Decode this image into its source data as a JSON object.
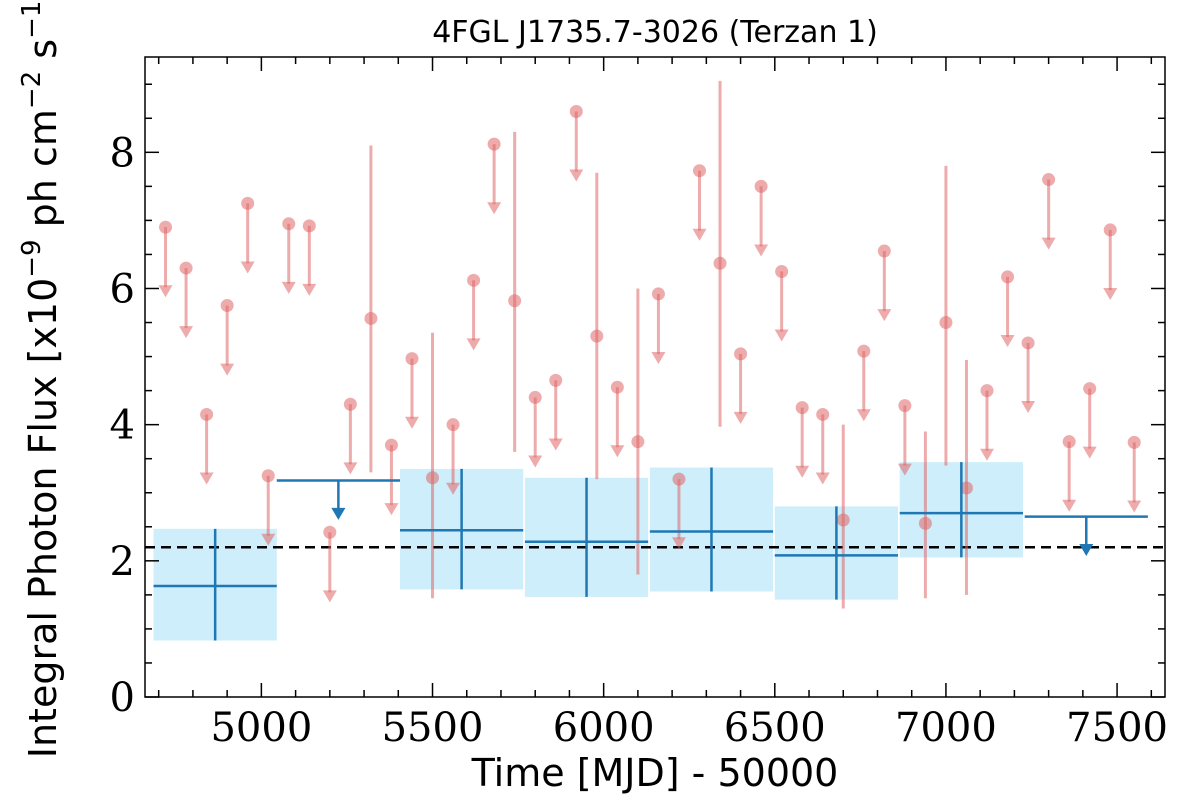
{
  "chart_data": {
    "type": "scatter",
    "title": "4FGL J1735.7-3026 (Terzan 1)",
    "xlabel": "Time [MJD] - 50000",
    "ylabel_parts": [
      "Integral Photon Flux [x10",
      "−9",
      " ph cm",
      "−2",
      " s",
      "−1",
      "]"
    ],
    "xlim": [
      4660,
      7640
    ],
    "ylim": [
      0,
      9.4
    ],
    "x_ticks": [
      5000,
      5500,
      6000,
      6500,
      7000,
      7500
    ],
    "y_ticks": [
      0,
      2,
      4,
      6,
      8
    ],
    "grid": false,
    "mean_flux": 2.2,
    "colors": {
      "red": "#e06666",
      "blue": "#1f77b4",
      "band": "#cdeefa",
      "mean": "#000000"
    },
    "short_bins": {
      "upper_limits": [
        {
          "x": 4720,
          "y": 6.9
        },
        {
          "x": 4780,
          "y": 6.3
        },
        {
          "x": 4840,
          "y": 4.15
        },
        {
          "x": 4900,
          "y": 5.75
        },
        {
          "x": 4960,
          "y": 7.25
        },
        {
          "x": 5020,
          "y": 3.25
        },
        {
          "x": 5080,
          "y": 6.95
        },
        {
          "x": 5140,
          "y": 6.92
        },
        {
          "x": 5200,
          "y": 2.42
        },
        {
          "x": 5260,
          "y": 4.3
        },
        {
          "x": 5380,
          "y": 3.7
        },
        {
          "x": 5440,
          "y": 4.97
        },
        {
          "x": 5560,
          "y": 4.0
        },
        {
          "x": 5620,
          "y": 6.12
        },
        {
          "x": 5680,
          "y": 8.12
        },
        {
          "x": 5800,
          "y": 4.4
        },
        {
          "x": 5860,
          "y": 4.65
        },
        {
          "x": 5920,
          "y": 8.6
        },
        {
          "x": 6040,
          "y": 4.55
        },
        {
          "x": 6160,
          "y": 5.92
        },
        {
          "x": 6220,
          "y": 3.2
        },
        {
          "x": 6280,
          "y": 7.73
        },
        {
          "x": 6400,
          "y": 5.04
        },
        {
          "x": 6460,
          "y": 7.5
        },
        {
          "x": 6520,
          "y": 6.25
        },
        {
          "x": 6580,
          "y": 4.25
        },
        {
          "x": 6640,
          "y": 4.15
        },
        {
          "x": 6760,
          "y": 5.08
        },
        {
          "x": 6820,
          "y": 6.55
        },
        {
          "x": 6880,
          "y": 4.28
        },
        {
          "x": 7120,
          "y": 4.5
        },
        {
          "x": 7180,
          "y": 6.17
        },
        {
          "x": 7240,
          "y": 5.2
        },
        {
          "x": 7360,
          "y": 3.75
        },
        {
          "x": 7300,
          "y": 7.6
        },
        {
          "x": 7420,
          "y": 4.53
        },
        {
          "x": 7480,
          "y": 6.86
        },
        {
          "x": 7550,
          "y": 3.74
        }
      ],
      "detections": [
        {
          "x": 5320,
          "y": 5.56,
          "ylo": 3.3,
          "yhi": 8.1
        },
        {
          "x": 5500,
          "y": 3.22,
          "ylo": 1.45,
          "yhi": 5.35
        },
        {
          "x": 5740,
          "y": 5.82,
          "ylo": 3.6,
          "yhi": 8.3
        },
        {
          "x": 5980,
          "y": 5.3,
          "ylo": 3.2,
          "yhi": 7.7
        },
        {
          "x": 6100,
          "y": 3.75,
          "ylo": 1.8,
          "yhi": 6.0
        },
        {
          "x": 6340,
          "y": 6.37,
          "ylo": 3.97,
          "yhi": 9.05
        },
        {
          "x": 6700,
          "y": 2.6,
          "ylo": 1.3,
          "yhi": 4.0
        },
        {
          "x": 6940,
          "y": 2.55,
          "ylo": 1.45,
          "yhi": 3.9
        },
        {
          "x": 7000,
          "y": 5.5,
          "ylo": 3.4,
          "yhi": 7.8
        },
        {
          "x": 7060,
          "y": 3.07,
          "ylo": 1.5,
          "yhi": 4.95
        }
      ]
    },
    "long_bins": {
      "detections": [
        {
          "x": 4865,
          "xlo": 4685,
          "xhi": 5045,
          "y": 1.63,
          "ylo": 0.83,
          "yhi": 2.47
        },
        {
          "x": 5585,
          "xlo": 5405,
          "xhi": 5765,
          "y": 2.45,
          "ylo": 1.58,
          "yhi": 3.35
        },
        {
          "x": 5950,
          "xlo": 5770,
          "xhi": 6130,
          "y": 2.28,
          "ylo": 1.47,
          "yhi": 3.22
        },
        {
          "x": 6315,
          "xlo": 6135,
          "xhi": 6495,
          "y": 2.43,
          "ylo": 1.55,
          "yhi": 3.37
        },
        {
          "x": 6680,
          "xlo": 6500,
          "xhi": 6860,
          "y": 2.08,
          "ylo": 1.43,
          "yhi": 2.8
        },
        {
          "x": 7045,
          "xlo": 6865,
          "xhi": 7225,
          "y": 2.7,
          "ylo": 2.05,
          "yhi": 3.45
        }
      ],
      "upper_limits": [
        {
          "x": 5225,
          "xlo": 5045,
          "xhi": 5405,
          "y": 3.18
        },
        {
          "x": 7410,
          "xlo": 7230,
          "xhi": 7590,
          "y": 2.65
        }
      ]
    }
  }
}
